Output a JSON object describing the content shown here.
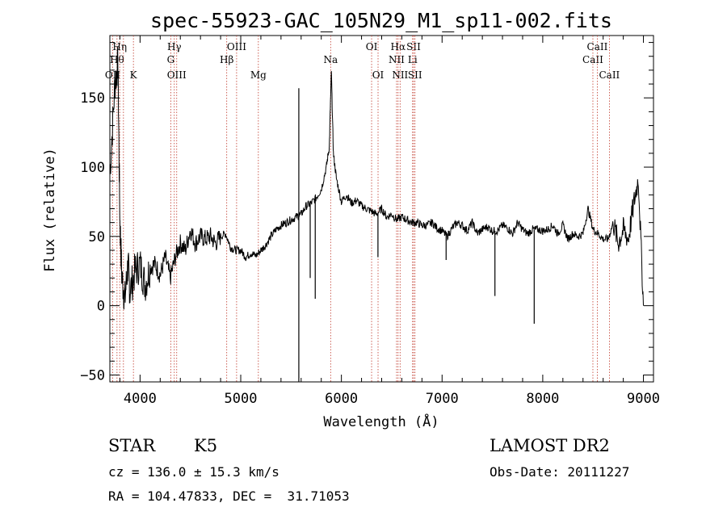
{
  "chart_data": {
    "type": "line",
    "title": "spec-55923-GAC_105N29_M1_sp11-002.fits",
    "xlabel": "Wavelength (Å)",
    "ylabel": "Flux (relative)",
    "xlim": [
      3700,
      9100
    ],
    "ylim": [
      -55,
      195
    ],
    "xticks": [
      4000,
      5000,
      6000,
      7000,
      8000,
      9000
    ],
    "xtick_labels": [
      "4000",
      "5000",
      "6000",
      "7000",
      "8000",
      "9000"
    ],
    "yticks": [
      -50,
      0,
      50,
      100,
      150
    ],
    "ytick_labels": [
      "−50",
      "0",
      "50",
      "100",
      "150"
    ],
    "grid": false,
    "series": [
      {
        "color": "#000000",
        "x": [
          3700,
          3750,
          3780,
          3800,
          3820,
          3850,
          3880,
          3900,
          3950,
          4000,
          4050,
          4100,
          4150,
          4200,
          4250,
          4300,
          4350,
          4400,
          4450,
          4500,
          4550,
          4600,
          4650,
          4700,
          4750,
          4800,
          4850,
          4900,
          4950,
          5000,
          5050,
          5100,
          5150,
          5200,
          5250,
          5300,
          5350,
          5400,
          5450,
          5500,
          5550,
          5600,
          5650,
          5700,
          5750,
          5800,
          5850,
          5880,
          5900,
          5920,
          5950,
          6000,
          6050,
          6100,
          6150,
          6200,
          6250,
          6300,
          6350,
          6400,
          6450,
          6500,
          6550,
          6600,
          6650,
          6700,
          6750,
          6800,
          6850,
          6900,
          6950,
          7000,
          7050,
          7100,
          7150,
          7200,
          7250,
          7300,
          7350,
          7400,
          7450,
          7500,
          7550,
          7600,
          7650,
          7700,
          7750,
          7800,
          7850,
          7900,
          7950,
          8000,
          8050,
          8100,
          8150,
          8200,
          8250,
          8300,
          8350,
          8400,
          8450,
          8500,
          8550,
          8600,
          8650,
          8700,
          8750,
          8800,
          8850,
          8900,
          8950,
          9000
        ],
        "y": [
          95,
          160,
          175,
          60,
          20,
          5,
          30,
          10,
          25,
          30,
          15,
          28,
          30,
          22,
          35,
          20,
          35,
          45,
          40,
          55,
          45,
          50,
          48,
          50,
          45,
          50,
          52,
          42,
          40,
          40,
          35,
          38,
          36,
          40,
          44,
          50,
          55,
          58,
          60,
          62,
          64,
          66,
          72,
          74,
          78,
          84,
          100,
          115,
          170,
          110,
          92,
          75,
          80,
          74,
          76,
          72,
          70,
          68,
          66,
          70,
          64,
          66,
          62,
          64,
          62,
          60,
          60,
          58,
          58,
          60,
          56,
          54,
          50,
          56,
          60,
          58,
          54,
          60,
          52,
          55,
          57,
          54,
          54,
          58,
          56,
          52,
          60,
          55,
          52,
          55,
          55,
          54,
          55,
          58,
          52,
          58,
          48,
          52,
          50,
          52,
          70,
          55,
          52,
          48,
          48,
          60,
          45,
          55,
          48,
          72,
          92,
          0
        ]
      }
    ],
    "spikes": [
      {
        "x": 5577,
        "y": 157
      },
      {
        "x": 5577,
        "y": -55
      },
      {
        "x": 5690,
        "y": 20
      },
      {
        "x": 5740,
        "y": 5
      },
      {
        "x": 6363,
        "y": 35
      },
      {
        "x": 7040,
        "y": 33
      },
      {
        "x": 7525,
        "y": 7
      },
      {
        "x": 7915,
        "y": -13
      }
    ],
    "spectral_lines": [
      {
        "x": 3728,
        "label": "OII",
        "row": 3
      },
      {
        "x": 3771,
        "label": "Hθ",
        "row": 2
      },
      {
        "x": 3798,
        "label": "Hη",
        "row": 1
      },
      {
        "x": 3835,
        "label": "",
        "row": 0
      },
      {
        "x": 3934,
        "label": "K",
        "row": 3
      },
      {
        "x": 4305,
        "label": "G",
        "row": 2
      },
      {
        "x": 4340,
        "label": "Hγ",
        "row": 1
      },
      {
        "x": 4364,
        "label": "OIII",
        "row": 3
      },
      {
        "x": 4861,
        "label": "Hβ",
        "row": 2
      },
      {
        "x": 4959,
        "label": "OIII",
        "row": 1
      },
      {
        "x": 5175,
        "label": "Mg",
        "row": 3
      },
      {
        "x": 5893,
        "label": "Na",
        "row": 2
      },
      {
        "x": 6300,
        "label": "OI",
        "row": 1
      },
      {
        "x": 6364,
        "label": "OI",
        "row": 3
      },
      {
        "x": 6548,
        "label": "NII",
        "row": 2
      },
      {
        "x": 6563,
        "label": "Hα",
        "row": 1
      },
      {
        "x": 6583,
        "label": "NII",
        "row": 3
      },
      {
        "x": 6707,
        "label": "Li",
        "row": 2
      },
      {
        "x": 6717,
        "label": "SII",
        "row": 1
      },
      {
        "x": 6731,
        "label": "SII",
        "row": 3
      },
      {
        "x": 8498,
        "label": "CaII",
        "row": 2
      },
      {
        "x": 8542,
        "label": "CaII",
        "row": 1
      },
      {
        "x": 8662,
        "label": "CaII",
        "row": 3
      }
    ]
  },
  "info": {
    "class_label": "STAR",
    "subclass": "K5",
    "survey": "LAMOST DR2",
    "cz": "cz = 136.0 ± 15.3 km/s",
    "obs_date": "Obs-Date: 20111227",
    "radec": "RA = 104.47833, DEC =  31.71053"
  }
}
